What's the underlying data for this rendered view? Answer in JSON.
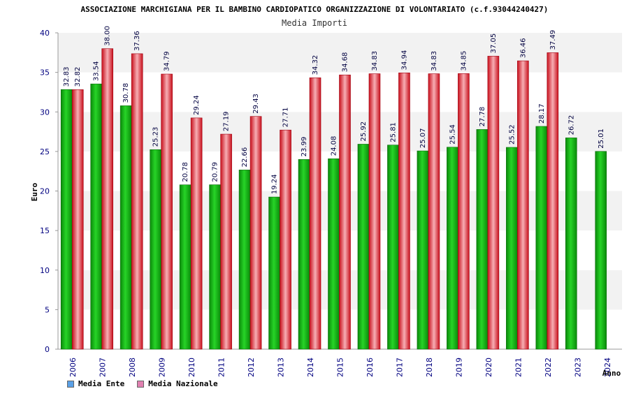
{
  "colors": {
    "ente": "#1fbf1f",
    "nazionale": "#e8303c",
    "legend_ente": "#5aa0e6",
    "legend_nazionale": "#e080b0",
    "axis_text": "#000080",
    "band": "#f2f2f2"
  },
  "chart_data": {
    "type": "bar",
    "title": "ASSOCIAZIONE MARCHIGIANA PER IL BAMBINO CARDIOPATICO ORGANIZZAZIONE DI VOLONTARIATO (c.f.93044240427)",
    "subtitle": "Media Importi",
    "xlabel": "Anno",
    "ylabel": "Euro",
    "ylim": [
      0,
      40
    ],
    "yticks": [
      0,
      5,
      10,
      15,
      20,
      25,
      30,
      35,
      40
    ],
    "categories": [
      "2006",
      "2007",
      "2008",
      "2009",
      "2010",
      "2011",
      "2012",
      "2013",
      "2014",
      "2015",
      "2016",
      "2017",
      "2018",
      "2019",
      "2020",
      "2021",
      "2022",
      "2023",
      "2024"
    ],
    "series": [
      {
        "name": "Media Ente",
        "values": [
          32.83,
          33.54,
          30.78,
          25.23,
          20.78,
          20.79,
          22.66,
          19.24,
          23.99,
          24.08,
          25.92,
          25.81,
          25.07,
          25.54,
          27.78,
          25.52,
          28.17,
          26.72,
          25.01
        ],
        "labels": [
          "32.83",
          "33.54",
          "30.78",
          "25.23",
          "20.78",
          "20.79",
          "22.66",
          "19.24",
          "23.99",
          "24.08",
          "25.92",
          "25.81",
          "25.07",
          "25.54",
          "27.78",
          "25.52",
          "28.17",
          "26.72",
          "25.01"
        ]
      },
      {
        "name": "Media Nazionale",
        "values": [
          32.82,
          38.0,
          37.36,
          34.79,
          29.24,
          27.19,
          29.43,
          27.71,
          34.32,
          34.68,
          34.83,
          34.94,
          34.83,
          34.85,
          37.05,
          36.46,
          37.49,
          null,
          null
        ],
        "labels": [
          "32.82",
          "38.00",
          "37.36",
          "34.79",
          "29.24",
          "27.19",
          "29.43",
          "27.71",
          "34.32",
          "34.68",
          "34.83",
          "34.94",
          "34.83",
          "34.85",
          "37.05",
          "36.46",
          "37.49",
          null,
          null
        ]
      }
    ],
    "legend": [
      "Media Ente",
      "Media Nazionale"
    ],
    "legend_position": "bottom-left",
    "grid": "horizontal-bands"
  }
}
